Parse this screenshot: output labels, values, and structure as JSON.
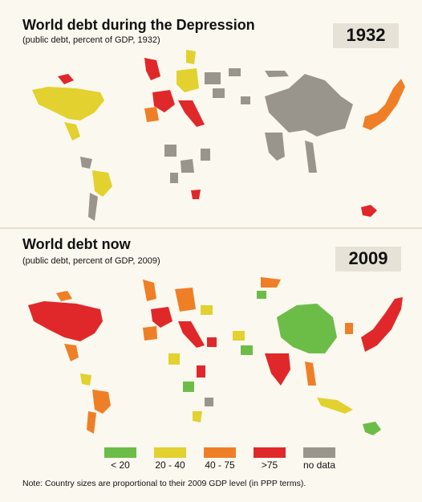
{
  "panels": [
    {
      "title": "World debt during the Depression",
      "subtitle": "(public debt, percent of GDP, 1932)",
      "year": "1932"
    },
    {
      "title": "World debt now",
      "subtitle": "(public debt, percent of GDP, 2009)",
      "year": "2009"
    }
  ],
  "legend": [
    {
      "label": "< 20",
      "color": "#6bbd47"
    },
    {
      "label": "20 - 40",
      "color": "#e2d12e"
    },
    {
      "label": "40 - 75",
      "color": "#ef7f27"
    },
    {
      "label": ">75",
      "color": "#e0282a"
    },
    {
      "label": "no data",
      "color": "#9a958c"
    }
  ],
  "note": "Note: Country sizes are proportional to their 2009 GDP level (in PPP terms)."
}
